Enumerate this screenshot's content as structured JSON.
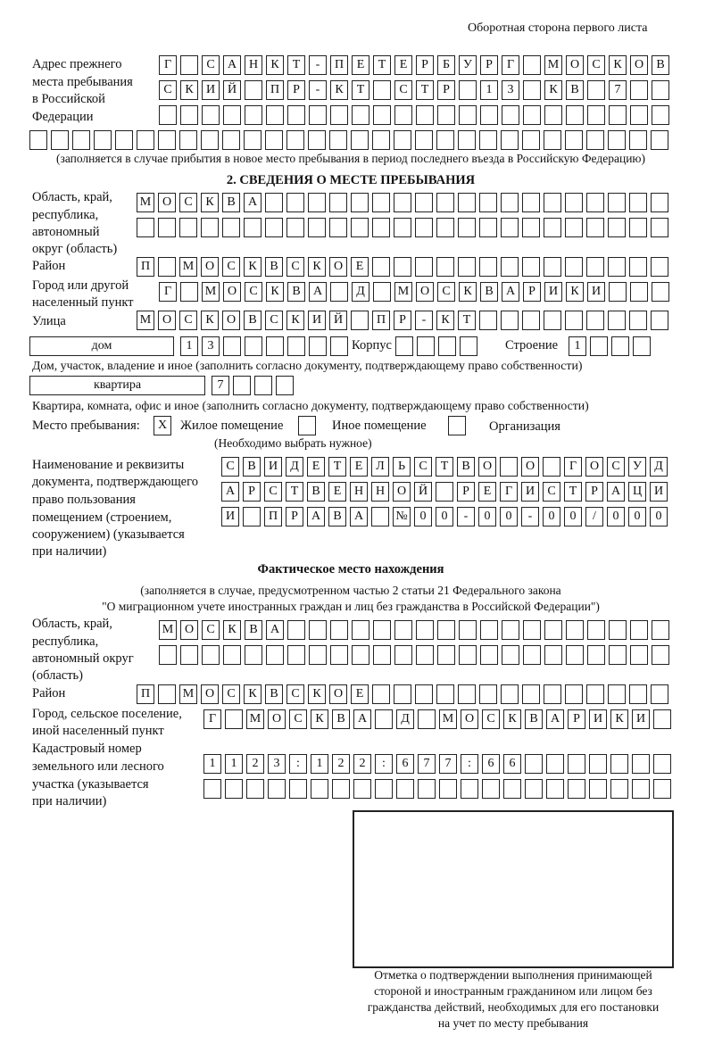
{
  "header": {
    "side_note": "Оборотная сторона первого листа"
  },
  "previous_address": {
    "label": [
      "Адрес прежнего",
      "места пребывания",
      "в Российской",
      "Федерации"
    ],
    "rows": [
      [
        "Г",
        "",
        "С",
        "А",
        "Н",
        "К",
        "Т",
        "-",
        "П",
        "Е",
        "Т",
        "Е",
        "Р",
        "Б",
        "У",
        "Р",
        "Г",
        "",
        "М",
        "О",
        "С",
        "К",
        "О",
        "В"
      ],
      [
        "С",
        "К",
        "И",
        "Й",
        "",
        "П",
        "Р",
        "-",
        "К",
        "Т",
        "",
        "С",
        "Т",
        "Р",
        "",
        "1",
        "3",
        "",
        "К",
        "В",
        "",
        "7",
        "",
        ""
      ],
      [
        "",
        "",
        "",
        "",
        "",
        "",
        "",
        "",
        "",
        "",
        "",
        "",
        "",
        "",
        "",
        "",
        "",
        "",
        "",
        "",
        "",
        "",
        "",
        ""
      ],
      [
        "",
        "",
        "",
        "",
        "",
        "",
        "",
        "",
        "",
        "",
        "",
        "",
        "",
        "",
        "",
        "",
        "",
        "",
        "",
        "",
        "",
        "",
        "",
        "",
        "",
        "",
        "",
        "",
        "",
        ""
      ]
    ],
    "note": "(заполняется в случае прибытия в новое место пребывания в период последнего въезда в Российскую Федерацию)"
  },
  "section2": {
    "title": "2. СВЕДЕНИЯ О МЕСТЕ ПРЕБЫВАНИЯ",
    "region_label": [
      "Область, край,",
      "республика,",
      "автономный",
      "округ (область)"
    ],
    "region_rows": [
      [
        "М",
        "О",
        "С",
        "К",
        "В",
        "А",
        "",
        "",
        "",
        "",
        "",
        "",
        "",
        "",
        "",
        "",
        "",
        "",
        "",
        "",
        "",
        "",
        "",
        "",
        ""
      ],
      [
        "",
        "",
        "",
        "",
        "",
        "",
        "",
        "",
        "",
        "",
        "",
        "",
        "",
        "",
        "",
        "",
        "",
        "",
        "",
        "",
        "",
        "",
        "",
        "",
        ""
      ]
    ],
    "district_label": "Район",
    "district_row": [
      "П",
      "",
      "М",
      "О",
      "С",
      "К",
      "В",
      "С",
      "К",
      "О",
      "Е",
      "",
      "",
      "",
      "",
      "",
      "",
      "",
      "",
      "",
      "",
      "",
      "",
      "",
      ""
    ],
    "city_label": [
      "Город или другой",
      "населенный пункт"
    ],
    "city_row": [
      "Г",
      "",
      "М",
      "О",
      "С",
      "К",
      "В",
      "А",
      "",
      "Д",
      "",
      "М",
      "О",
      "С",
      "К",
      "В",
      "А",
      "Р",
      "И",
      "К",
      "И",
      "",
      "",
      ""
    ],
    "street_label": "Улица",
    "street_row": [
      "М",
      "О",
      "С",
      "К",
      "О",
      "В",
      "С",
      "К",
      "И",
      "Й",
      "",
      "П",
      "Р",
      "-",
      "К",
      "Т",
      "",
      "",
      "",
      "",
      "",
      "",
      "",
      "",
      ""
    ],
    "house_type": "дом",
    "house_row": [
      "1",
      "3",
      "",
      "",
      "",
      "",
      "",
      ""
    ],
    "korpus_label": "Корпус",
    "korpus_row": [
      "",
      "",
      "",
      ""
    ],
    "building_label": "Строение",
    "building_row": [
      "1",
      "",
      "",
      ""
    ],
    "house_note": "Дом, участок, владение и иное (заполнить согласно документу, подтверждающему право собственности)",
    "apt_type": "квартира",
    "apt_row": [
      "7",
      "",
      "",
      ""
    ],
    "apt_note": "Квартира, комната, офис и иное (заполнить согласно документу, подтверждающему право собственности)",
    "stay_label": "Место пребывания:",
    "stay_options": [
      {
        "label": "Жилое помещение",
        "mark": "X"
      },
      {
        "label": "Иное помещение",
        "mark": ""
      },
      {
        "label": "Организация",
        "mark": ""
      }
    ],
    "stay_note": "(Необходимо выбрать нужное)",
    "doc_label": [
      "Наименование и реквизиты",
      "документа, подтверждающего",
      "право пользования",
      "помещением (строением,",
      "сооружением) (указывается",
      "при наличии)"
    ],
    "doc_rows": [
      [
        "С",
        "В",
        "И",
        "Д",
        "Е",
        "Т",
        "Е",
        "Л",
        "Ь",
        "С",
        "Т",
        "В",
        "О",
        "",
        "О",
        "",
        "Г",
        "О",
        "С",
        "У",
        "Д"
      ],
      [
        "А",
        "Р",
        "С",
        "Т",
        "В",
        "Е",
        "Н",
        "Н",
        "О",
        "Й",
        "",
        "Р",
        "Е",
        "Г",
        "И",
        "С",
        "Т",
        "Р",
        "А",
        "Ц",
        "И"
      ],
      [
        "И",
        "",
        "П",
        "Р",
        "А",
        "В",
        "А",
        "",
        "№",
        "0",
        "0",
        "-",
        "0",
        "0",
        "-",
        "0",
        "0",
        "/",
        "0",
        "0",
        "0"
      ]
    ]
  },
  "actual": {
    "title": "Фактическое место нахождения",
    "note": [
      "(заполняется в случае, предусмотренном частью 2 статьи 21 Федерального закона",
      "\"О миграционном учете иностранных граждан и лиц без гражданства в Российской Федерации\")"
    ],
    "region_label": [
      "Область, край,",
      "республика,",
      "автономный округ",
      "(область)"
    ],
    "region_rows": [
      [
        "М",
        "О",
        "С",
        "К",
        "В",
        "А",
        "",
        "",
        "",
        "",
        "",
        "",
        "",
        "",
        "",
        "",
        "",
        "",
        "",
        "",
        "",
        "",
        "",
        ""
      ],
      [
        "",
        "",
        "",
        "",
        "",
        "",
        "",
        "",
        "",
        "",
        "",
        "",
        "",
        "",
        "",
        "",
        "",
        "",
        "",
        "",
        "",
        "",
        "",
        ""
      ]
    ],
    "district_label": "Район",
    "district_row": [
      "П",
      "",
      "М",
      "О",
      "С",
      "К",
      "В",
      "С",
      "К",
      "О",
      "Е",
      "",
      "",
      "",
      "",
      "",
      "",
      "",
      "",
      "",
      "",
      "",
      "",
      "",
      ""
    ],
    "city_label": [
      "Город, сельское поселение,",
      "иной населенный пункт"
    ],
    "city_row": [
      "Г",
      "",
      "М",
      "О",
      "С",
      "К",
      "В",
      "А",
      "",
      "Д",
      "",
      "М",
      "О",
      "С",
      "К",
      "В",
      "А",
      "Р",
      "И",
      "К",
      "И",
      ""
    ],
    "cadastre_label": [
      "Кадастровый номер",
      "земельного или лесного",
      "участка (указывается",
      "при наличии)"
    ],
    "cadastre_rows": [
      [
        "1",
        "1",
        "2",
        "3",
        ":",
        "1",
        "2",
        "2",
        ":",
        "6",
        "7",
        "7",
        ":",
        "6",
        "6",
        "",
        "",
        "",
        "",
        "",
        "",
        ""
      ],
      [
        "",
        "",
        "",
        "",
        "",
        "",
        "",
        "",
        "",
        "",
        "",
        "",
        "",
        "",
        "",
        "",
        "",
        "",
        "",
        "",
        "",
        ""
      ]
    ]
  },
  "confirmation": {
    "caption": [
      "Отметка о подтверждении выполнения принимающей",
      "стороной и иностранным гражданином или лицом без",
      "гражданства действий, необходимых для его постановки",
      "на учет по месту пребывания"
    ]
  }
}
